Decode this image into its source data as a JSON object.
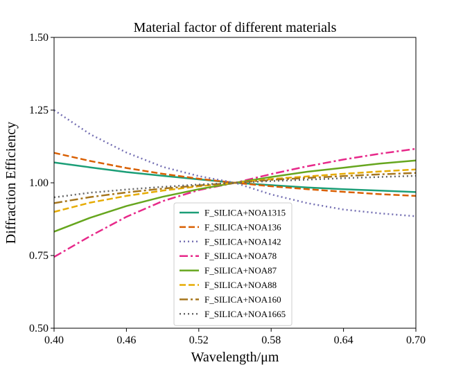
{
  "chart_data": {
    "type": "line",
    "title": "Material factor of different materials",
    "xlabel": "Wavelength/μm",
    "ylabel": "Diffraction Efficiency",
    "xlim": [
      0.4,
      0.7
    ],
    "ylim": [
      0.5,
      1.5
    ],
    "xticks": [
      "0.40",
      "0.46",
      "0.52",
      "0.58",
      "0.64",
      "0.70"
    ],
    "yticks": [
      "0.50",
      "0.75",
      "1.00",
      "1.25",
      "1.50"
    ],
    "grid": false,
    "legend_position": "bottom-center",
    "x": [
      0.4,
      0.43,
      0.46,
      0.49,
      0.52,
      0.55,
      0.58,
      0.61,
      0.64,
      0.67,
      0.7
    ],
    "series": [
      {
        "name": "F_SILICA+NOA1315",
        "color": "#1b9e77",
        "dash": "solid",
        "values": [
          1.07,
          1.053,
          1.037,
          1.024,
          1.012,
          1.0,
          0.992,
          0.984,
          0.978,
          0.973,
          0.968
        ]
      },
      {
        "name": "F_SILICA+NOA136",
        "color": "#d95f02",
        "dash": "dashed",
        "values": [
          1.103,
          1.075,
          1.051,
          1.031,
          1.014,
          1.0,
          0.988,
          0.978,
          0.969,
          0.961,
          0.955
        ]
      },
      {
        "name": "F_SILICA+NOA142",
        "color": "#7570b3",
        "dash": "dotted",
        "values": [
          1.25,
          1.167,
          1.104,
          1.055,
          1.023,
          1.0,
          0.96,
          0.93,
          0.908,
          0.895,
          0.885
        ]
      },
      {
        "name": "F_SILICA+NOA78",
        "color": "#e7298a",
        "dash": "dashdot",
        "values": [
          0.745,
          0.817,
          0.883,
          0.937,
          0.975,
          1.0,
          1.03,
          1.057,
          1.08,
          1.1,
          1.117
        ]
      },
      {
        "name": "F_SILICA+NOA87",
        "color": "#66a61e",
        "dash": "solid",
        "values": [
          0.832,
          0.88,
          0.92,
          0.952,
          0.978,
          1.0,
          1.02,
          1.038,
          1.052,
          1.066,
          1.077
        ]
      },
      {
        "name": "F_SILICA+NOA88",
        "color": "#e6ab02",
        "dash": "dashed",
        "values": [
          0.9,
          0.932,
          0.955,
          0.973,
          0.988,
          1.0,
          1.013,
          1.022,
          1.031,
          1.039,
          1.046
        ]
      },
      {
        "name": "F_SILICA+NOA160",
        "color": "#a6761d",
        "dash": "dashdot",
        "values": [
          0.93,
          0.951,
          0.967,
          0.98,
          0.991,
          1.0,
          1.01,
          1.017,
          1.023,
          1.029,
          1.034
        ]
      },
      {
        "name": "F_SILICA+NOA1665",
        "color": "#666666",
        "dash": "dotted",
        "values": [
          0.95,
          0.966,
          0.977,
          0.986,
          0.994,
          1.0,
          1.006,
          1.011,
          1.016,
          1.02,
          1.024
        ]
      }
    ]
  }
}
